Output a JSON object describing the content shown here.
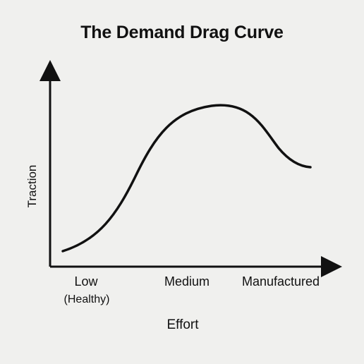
{
  "title": "The Demand Drag Curve",
  "ylabel": "Traction",
  "xlabel": "Effort",
  "x_ticks": [
    {
      "label": "Low",
      "sublabel": "(Healthy)"
    },
    {
      "label": "Medium"
    },
    {
      "label": "Manufactured"
    }
  ],
  "colors": {
    "background": "#f0f0ee",
    "ink": "#111111"
  }
}
